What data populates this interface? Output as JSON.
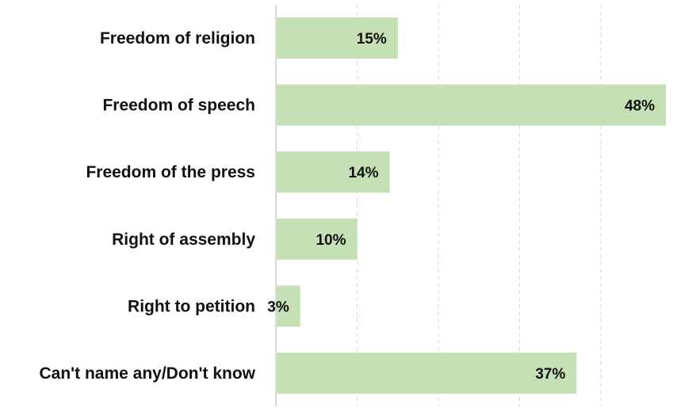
{
  "chart_data": {
    "type": "bar",
    "orientation": "horizontal",
    "title": "",
    "xlabel": "",
    "ylabel": "",
    "categories": [
      "Freedom of religion",
      "Freedom of speech",
      "Freedom of the press",
      "Right of assembly",
      "Right to petition",
      "Can't name any/Don't know"
    ],
    "values": [
      15,
      48,
      14,
      10,
      3,
      37
    ],
    "value_labels": [
      "15%",
      "48%",
      "14%",
      "10%",
      "3%",
      "37%"
    ],
    "xlim": [
      0,
      48
    ],
    "gridlines": [
      10,
      20,
      30,
      40
    ],
    "grid": true,
    "legend": "none",
    "bar_color": "#c5e0b4",
    "grid_color": "#d9d9d9"
  }
}
